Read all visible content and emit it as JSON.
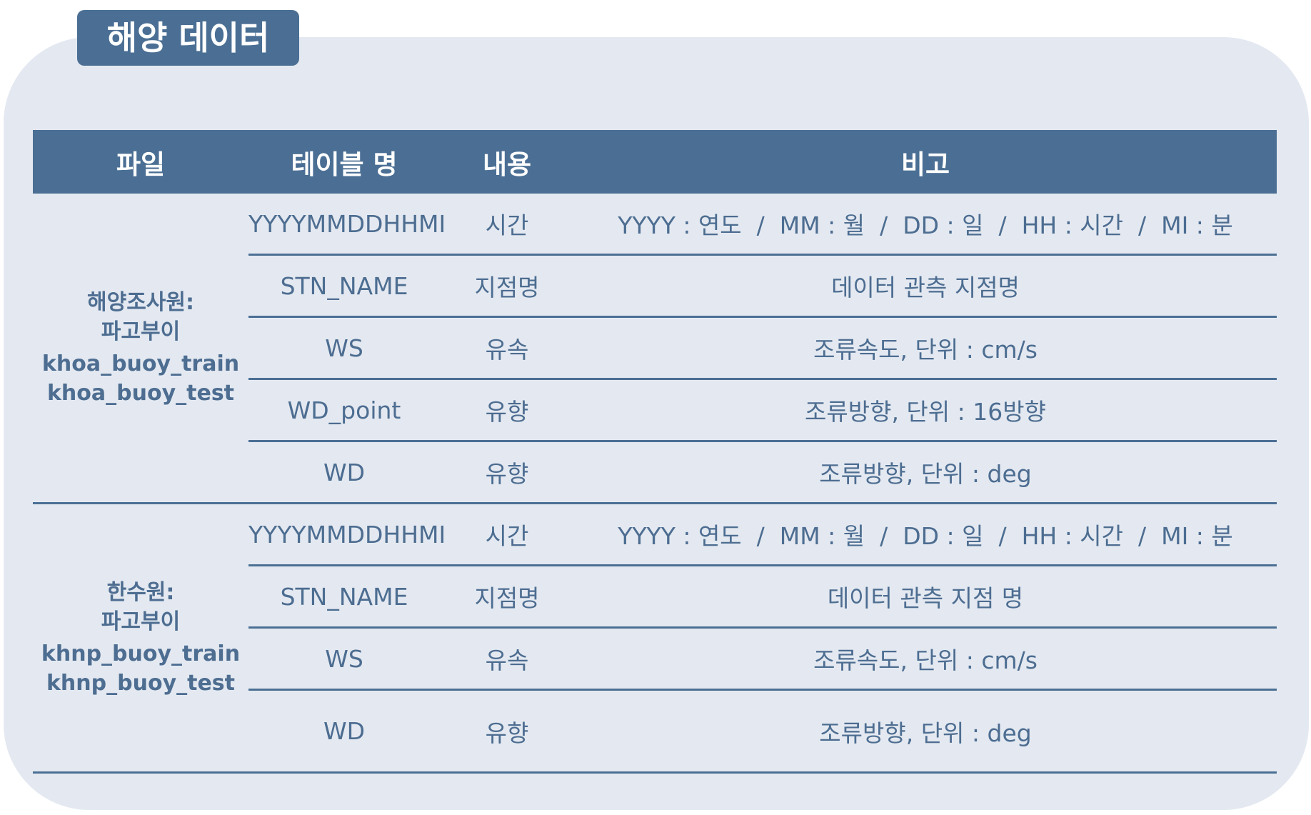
{
  "title": "해양 데이터",
  "headers": [
    "파일",
    "테이블 명",
    "내용",
    "비고"
  ],
  "groups": [
    {
      "file": {
        "name_line1": "해양조사원:",
        "name_line2": "파고부이",
        "train": "khoa_buoy_train",
        "test": "khoa_buoy_test"
      },
      "rows": [
        {
          "table": "YYYYMMDDHHMI",
          "content": "시간",
          "note": "YYYY : 연도  /  MM : 월  /  DD : 일  /  HH : 시간  /  MI : 분"
        },
        {
          "table": "STN_NAME",
          "content": "지점명",
          "note": "데이터 관측 지점명"
        },
        {
          "table": "WS",
          "content": "유속",
          "note": "조류속도, 단위 : cm/s"
        },
        {
          "table": "WD_point",
          "content": "유향",
          "note": "조류방향, 단위 : 16방향"
        },
        {
          "table": "WD",
          "content": "유향",
          "note": "조류방향, 단위 : deg"
        }
      ]
    },
    {
      "file": {
        "name_line1": "한수원:",
        "name_line2": "파고부이",
        "train": "khnp_buoy_train",
        "test": "khnp_buoy_test"
      },
      "rows": [
        {
          "table": "YYYYMMDDHHMI",
          "content": "시간",
          "note": "YYYY : 연도  /  MM : 월  /  DD : 일  /  HH : 시간  /  MI : 분"
        },
        {
          "table": "STN_NAME",
          "content": "지점명",
          "note": "데이터 관측 지점 명"
        },
        {
          "table": "WS",
          "content": "유속",
          "note": "조류속도, 단위 : cm/s"
        },
        {
          "table": "WD",
          "content": "유향",
          "note": "조류방향, 단위 : deg"
        }
      ]
    }
  ],
  "colors": {
    "header_bg": "#4b6f94",
    "panel_bg": "#e4e9f1",
    "text": "#4d6d91"
  }
}
